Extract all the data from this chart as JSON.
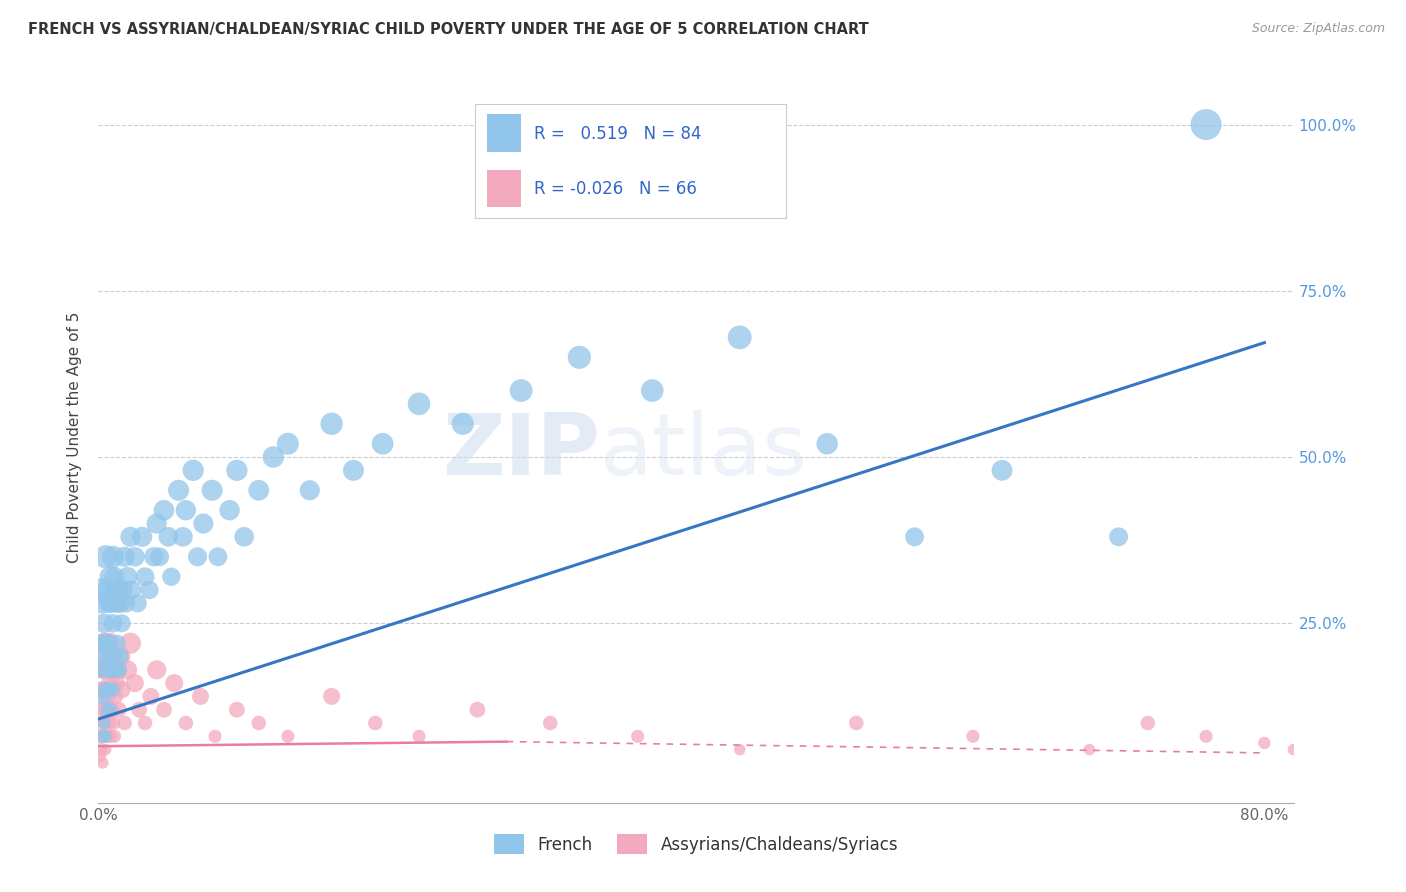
{
  "title": "FRENCH VS ASSYRIAN/CHALDEAN/SYRIAC CHILD POVERTY UNDER THE AGE OF 5 CORRELATION CHART",
  "source": "Source: ZipAtlas.com",
  "ylabel": "Child Poverty Under the Age of 5",
  "watermark_zip": "ZIP",
  "watermark_atlas": "atlas",
  "xlim": [
    0.0,
    0.82
  ],
  "ylim": [
    -0.02,
    1.08
  ],
  "xticks": [
    0.0,
    0.1,
    0.2,
    0.3,
    0.4,
    0.5,
    0.6,
    0.7,
    0.8
  ],
  "xticklabels": [
    "0.0%",
    "",
    "",
    "",
    "",
    "",
    "",
    "",
    "80.0%"
  ],
  "yticks_right": [
    0.25,
    0.5,
    0.75,
    1.0
  ],
  "yticklabels_right": [
    "25.0%",
    "50.0%",
    "75.0%",
    "100.0%"
  ],
  "grid_color": "#cccccc",
  "blue_color": "#92C5EA",
  "pink_color": "#F4AABE",
  "blue_line_color": "#3876C4",
  "pink_line_color": "#E87DA0",
  "legend_blue_label": "French",
  "legend_pink_label": "Assyrians/Chaldeans/Syriacs",
  "R_blue": 0.519,
  "N_blue": 84,
  "R_pink": -0.026,
  "N_pink": 66,
  "blue_line": [
    0.0,
    0.106,
    0.8,
    0.672
  ],
  "pink_line_solid": [
    0.0,
    0.065,
    0.28,
    0.072
  ],
  "pink_line_dash": [
    0.28,
    0.072,
    0.8,
    0.055
  ],
  "french_x": [
    0.001,
    0.002,
    0.002,
    0.003,
    0.003,
    0.003,
    0.004,
    0.004,
    0.004,
    0.005,
    0.005,
    0.005,
    0.005,
    0.006,
    0.006,
    0.006,
    0.007,
    0.007,
    0.007,
    0.008,
    0.008,
    0.008,
    0.009,
    0.009,
    0.01,
    0.01,
    0.01,
    0.011,
    0.011,
    0.012,
    0.012,
    0.013,
    0.013,
    0.014,
    0.014,
    0.015,
    0.015,
    0.016,
    0.017,
    0.018,
    0.019,
    0.02,
    0.022,
    0.023,
    0.025,
    0.027,
    0.03,
    0.032,
    0.035,
    0.038,
    0.04,
    0.042,
    0.045,
    0.048,
    0.05,
    0.055,
    0.058,
    0.06,
    0.065,
    0.068,
    0.072,
    0.078,
    0.082,
    0.09,
    0.095,
    0.1,
    0.11,
    0.12,
    0.13,
    0.145,
    0.16,
    0.175,
    0.195,
    0.22,
    0.25,
    0.29,
    0.33,
    0.38,
    0.44,
    0.5,
    0.56,
    0.62,
    0.7,
    0.76
  ],
  "french_y": [
    0.18,
    0.28,
    0.22,
    0.3,
    0.14,
    0.08,
    0.25,
    0.2,
    0.1,
    0.35,
    0.22,
    0.15,
    0.08,
    0.3,
    0.18,
    0.12,
    0.28,
    0.22,
    0.15,
    0.32,
    0.2,
    0.12,
    0.28,
    0.18,
    0.35,
    0.25,
    0.15,
    0.32,
    0.2,
    0.3,
    0.18,
    0.28,
    0.22,
    0.3,
    0.18,
    0.28,
    0.2,
    0.25,
    0.3,
    0.35,
    0.28,
    0.32,
    0.38,
    0.3,
    0.35,
    0.28,
    0.38,
    0.32,
    0.3,
    0.35,
    0.4,
    0.35,
    0.42,
    0.38,
    0.32,
    0.45,
    0.38,
    0.42,
    0.48,
    0.35,
    0.4,
    0.45,
    0.35,
    0.42,
    0.48,
    0.38,
    0.45,
    0.5,
    0.52,
    0.45,
    0.55,
    0.48,
    0.52,
    0.58,
    0.55,
    0.6,
    0.65,
    0.6,
    0.68,
    0.52,
    0.38,
    0.48,
    0.38,
    1.0
  ],
  "french_sizes": [
    120,
    220,
    180,
    300,
    150,
    100,
    200,
    160,
    90,
    280,
    180,
    130,
    80,
    220,
    150,
    100,
    200,
    160,
    110,
    230,
    160,
    100,
    190,
    140,
    250,
    180,
    110,
    210,
    150,
    220,
    140,
    190,
    150,
    200,
    140,
    190,
    150,
    170,
    190,
    210,
    180,
    200,
    210,
    180,
    200,
    170,
    210,
    185,
    175,
    195,
    215,
    185,
    220,
    200,
    175,
    230,
    200,
    215,
    235,
    190,
    210,
    230,
    185,
    215,
    235,
    200,
    225,
    240,
    250,
    210,
    260,
    230,
    245,
    265,
    255,
    270,
    280,
    265,
    295,
    240,
    185,
    225,
    185,
    500
  ],
  "acs_x": [
    0.001,
    0.001,
    0.002,
    0.002,
    0.002,
    0.003,
    0.003,
    0.003,
    0.003,
    0.004,
    0.004,
    0.004,
    0.005,
    0.005,
    0.005,
    0.006,
    0.006,
    0.006,
    0.007,
    0.007,
    0.008,
    0.008,
    0.008,
    0.009,
    0.009,
    0.01,
    0.01,
    0.011,
    0.011,
    0.012,
    0.013,
    0.014,
    0.015,
    0.016,
    0.018,
    0.02,
    0.022,
    0.025,
    0.028,
    0.032,
    0.036,
    0.04,
    0.045,
    0.052,
    0.06,
    0.07,
    0.08,
    0.095,
    0.11,
    0.13,
    0.16,
    0.19,
    0.22,
    0.26,
    0.31,
    0.37,
    0.44,
    0.52,
    0.6,
    0.68,
    0.72,
    0.76,
    0.8,
    0.82,
    0.84,
    0.86
  ],
  "acs_y": [
    0.08,
    0.05,
    0.12,
    0.06,
    0.15,
    0.2,
    0.1,
    0.04,
    0.18,
    0.15,
    0.08,
    0.22,
    0.12,
    0.06,
    0.18,
    0.14,
    0.08,
    0.22,
    0.1,
    0.18,
    0.16,
    0.08,
    0.22,
    0.12,
    0.18,
    0.1,
    0.2,
    0.14,
    0.08,
    0.16,
    0.18,
    0.12,
    0.2,
    0.15,
    0.1,
    0.18,
    0.22,
    0.16,
    0.12,
    0.1,
    0.14,
    0.18,
    0.12,
    0.16,
    0.1,
    0.14,
    0.08,
    0.12,
    0.1,
    0.08,
    0.14,
    0.1,
    0.08,
    0.12,
    0.1,
    0.08,
    0.06,
    0.1,
    0.08,
    0.06,
    0.1,
    0.08,
    0.07,
    0.06,
    0.05,
    0.04
  ],
  "acs_sizes": [
    100,
    80,
    130,
    90,
    150,
    200,
    120,
    70,
    180,
    150,
    90,
    220,
    130,
    70,
    180,
    150,
    90,
    220,
    110,
    180,
    160,
    90,
    220,
    130,
    190,
    110,
    200,
    150,
    90,
    170,
    190,
    130,
    210,
    160,
    110,
    190,
    230,
    170,
    130,
    110,
    150,
    190,
    130,
    170,
    110,
    150,
    90,
    130,
    110,
    90,
    150,
    110,
    90,
    130,
    110,
    90,
    70,
    110,
    90,
    70,
    110,
    90,
    80,
    70,
    60,
    50
  ]
}
